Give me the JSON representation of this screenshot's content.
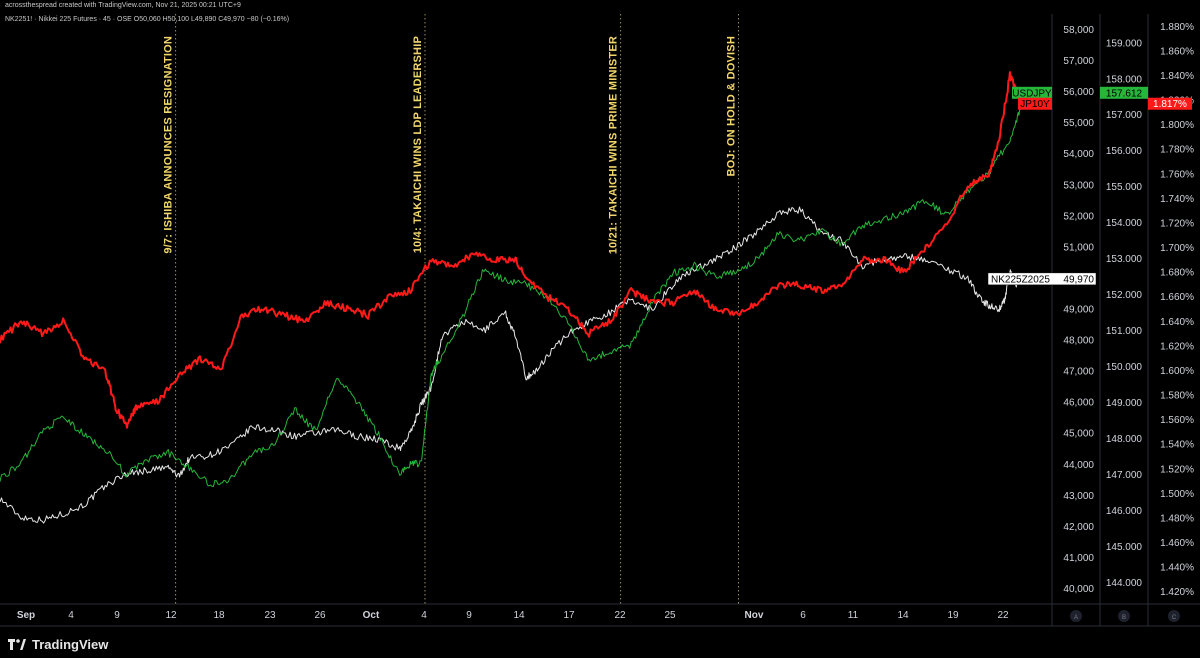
{
  "header": {
    "line1": "acrossthespread created with TradingView.com, Nov 21, 2025 00:21 UTC+9",
    "line2": "NK2251! · Nikkei 225 Futures · 45 · OSE  O50,060  H50,100  L49,890  C49,970  −80 (−0.16%)"
  },
  "footer": {
    "brand": "TradingView"
  },
  "chart_data": {
    "type": "line",
    "x_ticks": [
      {
        "label": "Sep",
        "bold": true
      },
      {
        "label": "4"
      },
      {
        "label": "9"
      },
      {
        "label": "12"
      },
      {
        "label": "18"
      },
      {
        "label": "23"
      },
      {
        "label": "26"
      },
      {
        "label": "Oct",
        "bold": true
      },
      {
        "label": "4"
      },
      {
        "label": "9"
      },
      {
        "label": "14"
      },
      {
        "label": "17"
      },
      {
        "label": "22"
      },
      {
        "label": "25"
      },
      {
        "label": "Nov",
        "bold": true
      },
      {
        "label": "6"
      },
      {
        "label": "11"
      },
      {
        "label": "14"
      },
      {
        "label": "19"
      },
      {
        "label": "22"
      }
    ],
    "axes": {
      "A": {
        "ylim": [
          39500,
          58500
        ],
        "ticks": [
          40000,
          41000,
          42000,
          43000,
          44000,
          45000,
          46000,
          47000,
          48000,
          49000,
          50000,
          51000,
          52000,
          53000,
          54000,
          55000,
          56000,
          57000,
          58000
        ],
        "labels": [
          "40,000",
          "41,000",
          "42,000",
          "43,000",
          "44,000",
          "45,000",
          "46,000",
          "47,000",
          "48,000",
          "49,000",
          "50,000",
          "51,000",
          "52,000",
          "53,000",
          "54,000",
          "55,000",
          "56,000",
          "57,000",
          "58,000"
        ],
        "footer": "A"
      },
      "B": {
        "ylim": [
          143.4,
          159.8
        ],
        "ticks": [
          144,
          145,
          146,
          147,
          148,
          149,
          150,
          151,
          152,
          153,
          154,
          155,
          156,
          157,
          158,
          159
        ],
        "labels": [
          "144.000",
          "145.000",
          "146.000",
          "147.000",
          "148.000",
          "149.000",
          "150.000",
          "151.000",
          "152.000",
          "153.000",
          "154.000",
          "155.000",
          "156.000",
          "157.000",
          "158.000",
          "159.000"
        ],
        "footer": "B"
      },
      "C": {
        "ylim": [
          1.41,
          1.89
        ],
        "ticks": [
          1.42,
          1.44,
          1.46,
          1.48,
          1.5,
          1.52,
          1.54,
          1.56,
          1.58,
          1.6,
          1.62,
          1.64,
          1.66,
          1.68,
          1.7,
          1.72,
          1.74,
          1.76,
          1.78,
          1.8,
          1.82,
          1.84,
          1.86,
          1.88
        ],
        "labels": [
          "1.420%",
          "1.440%",
          "1.460%",
          "1.480%",
          "1.500%",
          "1.520%",
          "1.540%",
          "1.560%",
          "1.580%",
          "1.600%",
          "1.620%",
          "1.640%",
          "1.660%",
          "1.680%",
          "1.700%",
          "1.720%",
          "1.740%",
          "1.760%",
          "1.780%",
          "1.800%",
          "1.820%",
          "1.840%",
          "1.860%",
          "1.880%"
        ],
        "footer": "C"
      }
    },
    "annotations": [
      {
        "text": "9/7:  ISHIBA ANNOUNCES RESIGNATION",
        "t": 0.167
      },
      {
        "text": "10/4:  TAKAICHI WINS LDP LEADERSHIP",
        "t": 0.404
      },
      {
        "text": "10/21:  TAKAICHI WINS PRIME MINISTER",
        "t": 0.59
      },
      {
        "text": "BOJ: ON HOLD & DOVISH",
        "t": 0.702
      }
    ],
    "series": [
      {
        "name": "NK225Z2025",
        "axis": "A",
        "color": "#e6e6e6",
        "last_label": "49,970",
        "points": [
          [
            0,
            42900
          ],
          [
            0.02,
            42300
          ],
          [
            0.04,
            42200
          ],
          [
            0.06,
            42400
          ],
          [
            0.08,
            42700
          ],
          [
            0.1,
            43300
          ],
          [
            0.12,
            43700
          ],
          [
            0.14,
            43800
          ],
          [
            0.16,
            43900
          ],
          [
            0.17,
            43600
          ],
          [
            0.18,
            44200
          ],
          [
            0.2,
            44300
          ],
          [
            0.22,
            44600
          ],
          [
            0.24,
            45200
          ],
          [
            0.26,
            45100
          ],
          [
            0.28,
            44900
          ],
          [
            0.3,
            45000
          ],
          [
            0.32,
            45100
          ],
          [
            0.34,
            44900
          ],
          [
            0.36,
            44800
          ],
          [
            0.38,
            44500
          ],
          [
            0.39,
            45000
          ],
          [
            0.4,
            45900
          ],
          [
            0.41,
            46500
          ],
          [
            0.42,
            48100
          ],
          [
            0.44,
            48600
          ],
          [
            0.46,
            48300
          ],
          [
            0.48,
            48900
          ],
          [
            0.49,
            48100
          ],
          [
            0.5,
            46800
          ],
          [
            0.51,
            47000
          ],
          [
            0.52,
            47500
          ],
          [
            0.54,
            48200
          ],
          [
            0.56,
            48600
          ],
          [
            0.58,
            48900
          ],
          [
            0.6,
            49300
          ],
          [
            0.62,
            49000
          ],
          [
            0.64,
            49800
          ],
          [
            0.66,
            50300
          ],
          [
            0.68,
            50600
          ],
          [
            0.7,
            51000
          ],
          [
            0.72,
            51500
          ],
          [
            0.74,
            52100
          ],
          [
            0.76,
            52200
          ],
          [
            0.78,
            51500
          ],
          [
            0.8,
            51200
          ],
          [
            0.82,
            50400
          ],
          [
            0.84,
            50600
          ],
          [
            0.86,
            50700
          ],
          [
            0.88,
            50600
          ],
          [
            0.9,
            50300
          ],
          [
            0.92,
            50000
          ],
          [
            0.93,
            49400
          ],
          [
            0.94,
            49100
          ],
          [
            0.95,
            49000
          ],
          [
            0.955,
            49300
          ],
          [
            0.96,
            50200
          ],
          [
            0.965,
            49800
          ],
          [
            0.98,
            49970
          ]
        ]
      },
      {
        "name": "USDJPY",
        "axis": "B",
        "color": "#26b63a",
        "last_label": "157.612",
        "points": [
          [
            0,
            146.9
          ],
          [
            0.02,
            147.3
          ],
          [
            0.04,
            148.2
          ],
          [
            0.06,
            148.6
          ],
          [
            0.08,
            148.1
          ],
          [
            0.1,
            147.7
          ],
          [
            0.12,
            147.0
          ],
          [
            0.14,
            147.4
          ],
          [
            0.16,
            147.6
          ],
          [
            0.18,
            147.2
          ],
          [
            0.2,
            146.7
          ],
          [
            0.22,
            146.9
          ],
          [
            0.24,
            147.6
          ],
          [
            0.26,
            147.8
          ],
          [
            0.28,
            148.8
          ],
          [
            0.3,
            148.2
          ],
          [
            0.32,
            149.7
          ],
          [
            0.34,
            149.0
          ],
          [
            0.36,
            148.1
          ],
          [
            0.38,
            147.0
          ],
          [
            0.39,
            147.3
          ],
          [
            0.4,
            147.3
          ],
          [
            0.41,
            149.8
          ],
          [
            0.42,
            150.3
          ],
          [
            0.44,
            151.4
          ],
          [
            0.46,
            152.7
          ],
          [
            0.48,
            152.4
          ],
          [
            0.5,
            152.3
          ],
          [
            0.52,
            151.9
          ],
          [
            0.54,
            151.2
          ],
          [
            0.56,
            150.2
          ],
          [
            0.58,
            150.4
          ],
          [
            0.6,
            150.6
          ],
          [
            0.62,
            151.8
          ],
          [
            0.64,
            152.6
          ],
          [
            0.66,
            152.8
          ],
          [
            0.68,
            152.5
          ],
          [
            0.7,
            152.6
          ],
          [
            0.72,
            153.0
          ],
          [
            0.74,
            153.7
          ],
          [
            0.76,
            153.5
          ],
          [
            0.78,
            153.8
          ],
          [
            0.8,
            153.4
          ],
          [
            0.82,
            153.9
          ],
          [
            0.84,
            154.1
          ],
          [
            0.86,
            154.3
          ],
          [
            0.88,
            154.6
          ],
          [
            0.9,
            154.2
          ],
          [
            0.92,
            154.9
          ],
          [
            0.94,
            155.4
          ],
          [
            0.96,
            156.3
          ],
          [
            0.97,
            157.2
          ],
          [
            0.98,
            157.61
          ]
        ]
      },
      {
        "name": "JP10Y",
        "axis": "C",
        "color": "#ff1a1a",
        "last_label": "1.817%",
        "points": [
          [
            0,
            1.625
          ],
          [
            0.02,
            1.64
          ],
          [
            0.04,
            1.63
          ],
          [
            0.06,
            1.64
          ],
          [
            0.08,
            1.61
          ],
          [
            0.1,
            1.6
          ],
          [
            0.11,
            1.57
          ],
          [
            0.12,
            1.555
          ],
          [
            0.13,
            1.57
          ],
          [
            0.15,
            1.575
          ],
          [
            0.17,
            1.595
          ],
          [
            0.19,
            1.61
          ],
          [
            0.21,
            1.6
          ],
          [
            0.23,
            1.645
          ],
          [
            0.25,
            1.65
          ],
          [
            0.27,
            1.645
          ],
          [
            0.29,
            1.64
          ],
          [
            0.31,
            1.655
          ],
          [
            0.33,
            1.65
          ],
          [
            0.35,
            1.645
          ],
          [
            0.37,
            1.66
          ],
          [
            0.39,
            1.665
          ],
          [
            0.41,
            1.69
          ],
          [
            0.43,
            1.685
          ],
          [
            0.45,
            1.695
          ],
          [
            0.47,
            1.69
          ],
          [
            0.49,
            1.69
          ],
          [
            0.5,
            1.675
          ],
          [
            0.52,
            1.66
          ],
          [
            0.54,
            1.65
          ],
          [
            0.56,
            1.63
          ],
          [
            0.58,
            1.64
          ],
          [
            0.6,
            1.665
          ],
          [
            0.62,
            1.655
          ],
          [
            0.64,
            1.655
          ],
          [
            0.66,
            1.665
          ],
          [
            0.68,
            1.65
          ],
          [
            0.7,
            1.645
          ],
          [
            0.72,
            1.655
          ],
          [
            0.74,
            1.67
          ],
          [
            0.76,
            1.67
          ],
          [
            0.78,
            1.665
          ],
          [
            0.8,
            1.67
          ],
          [
            0.82,
            1.69
          ],
          [
            0.84,
            1.69
          ],
          [
            0.86,
            1.68
          ],
          [
            0.88,
            1.7
          ],
          [
            0.9,
            1.72
          ],
          [
            0.92,
            1.75
          ],
          [
            0.94,
            1.76
          ],
          [
            0.95,
            1.79
          ],
          [
            0.96,
            1.84
          ],
          [
            0.97,
            1.82
          ],
          [
            0.98,
            1.817
          ]
        ]
      }
    ]
  }
}
